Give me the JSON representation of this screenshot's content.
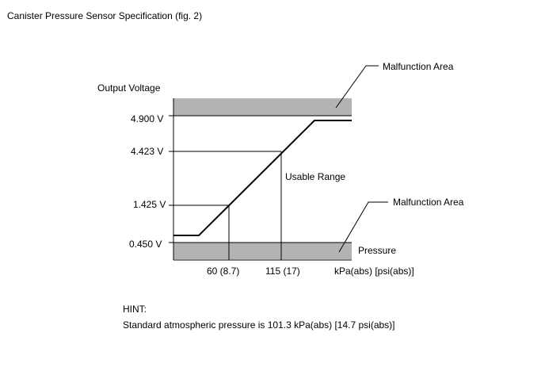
{
  "title": "Canister Pressure Sensor Specification (fig. 2)",
  "y_axis_label": "Output Voltage",
  "y_ticks": [
    "4.900 V",
    "4.423 V",
    "1.425 V",
    "0.450 V"
  ],
  "x_ticks": [
    "60 (8.7)",
    "115 (17)"
  ],
  "x_unit": "kPa(abs) [psi(abs)]",
  "pressure_label": "Pressure",
  "usable_range_label": "Usable Range",
  "malfunction_area_upper": "Malfunction Area",
  "malfunction_area_lower": "Malfunction Area",
  "hint_title": "HINT:",
  "hint_text": "Standard atmospheric pressure is 101.3 kPa(abs) [14.7 psi(abs)]",
  "colors": {
    "malfunction_band": "#b3b3b3",
    "line": "#000000"
  }
}
